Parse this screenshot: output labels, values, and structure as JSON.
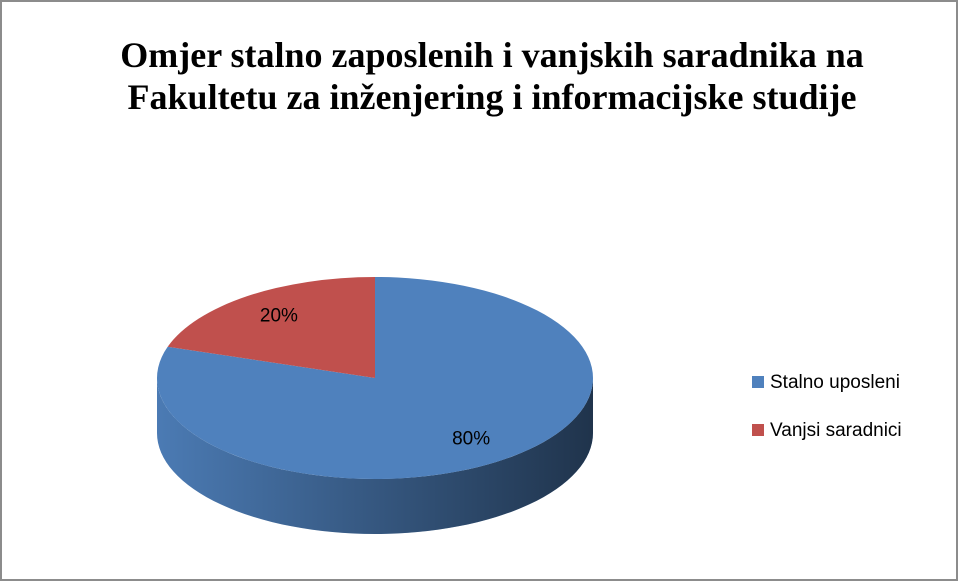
{
  "chart_data": {
    "type": "pie",
    "title": "Omjer stalno zaposlenih i vanjskih saradnika na Fakultetu za inženjering i informacijske studije",
    "categories": [
      "Stalno uposleni",
      "Vanjsi saradnici"
    ],
    "values": [
      80,
      20
    ],
    "value_labels": [
      "80%",
      "20%"
    ],
    "colors": [
      "#4f81bd",
      "#c0504d"
    ],
    "legend": "right"
  }
}
